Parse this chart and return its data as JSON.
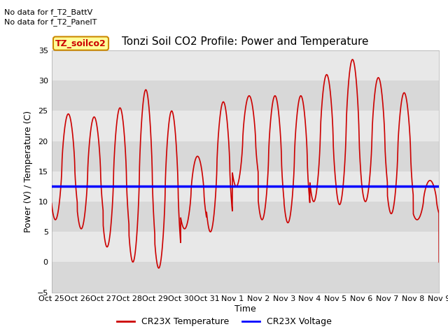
{
  "title": "Tonzi Soil CO2 Profile: Power and Temperature",
  "ylabel": "Power (V) / Temperature (C)",
  "xlabel": "Time",
  "xlim_labels": [
    "Oct 25",
    "Oct 26",
    "Oct 27",
    "Oct 28",
    "Oct 29",
    "Oct 30",
    "Oct 31",
    "Nov 1",
    "Nov 2",
    "Nov 3",
    "Nov 4",
    "Nov 5",
    "Nov 6",
    "Nov 7",
    "Nov 8",
    "Nov 9"
  ],
  "ylim": [
    -5,
    35
  ],
  "yticks": [
    -5,
    0,
    5,
    10,
    15,
    20,
    25,
    30,
    35
  ],
  "voltage_value": 12.5,
  "voltage_color": "#0000ff",
  "temp_color": "#cc0000",
  "bg_color": "#e8e8e8",
  "band_color_light": "#e8e8e8",
  "band_color_dark": "#d8d8d8",
  "legend_label_temp": "CR23X Temperature",
  "legend_label_volt": "CR23X Voltage",
  "annotation_line1": "No data for f_T2_BattV",
  "annotation_line2": "No data for f_T2_PanelT",
  "legend_box_label": "TZ_soilco2",
  "legend_box_color": "#ffff99",
  "legend_box_edge": "#cc8800",
  "title_fontsize": 11,
  "axis_fontsize": 9,
  "tick_fontsize": 8,
  "peaks": [
    24.5,
    24.0,
    25.5,
    28.5,
    25.0,
    17.5,
    26.5,
    27.5,
    27.5,
    27.5,
    31.0,
    33.5,
    30.5,
    28.0,
    13.5
  ],
  "troughs": [
    7.0,
    5.5,
    2.5,
    0.0,
    -1.0,
    5.5,
    5.0,
    12.5,
    7.0,
    6.5,
    10.0,
    9.5,
    10.0,
    8.0,
    7.0
  ],
  "peak_phase": 0.65,
  "trough_phase": 0.15
}
